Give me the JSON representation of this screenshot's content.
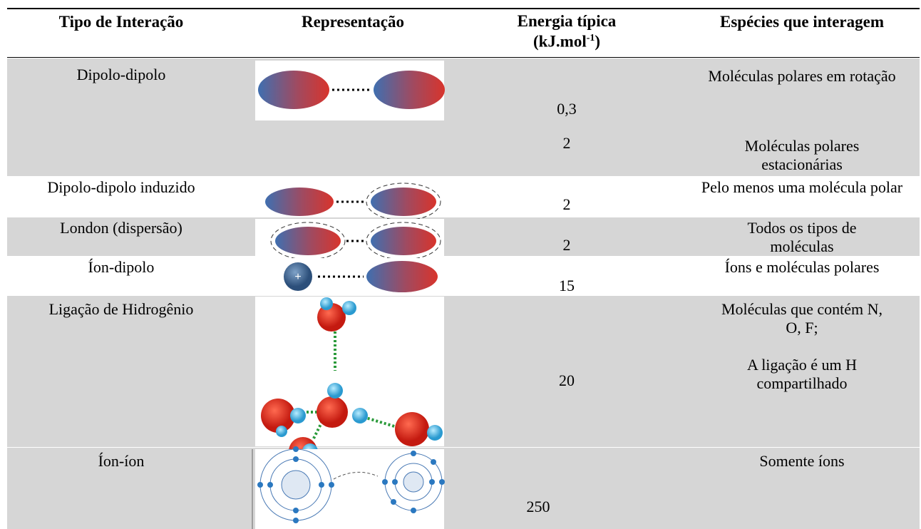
{
  "table": {
    "header": {
      "type": "Tipo de Interação",
      "representation": "Representação",
      "energy": {
        "main": "Energia típica",
        "unit": "(kJ.mol",
        "sup": "-1",
        "close": ")"
      },
      "species": "Espécies que interagem"
    },
    "rows": [
      {
        "type": "Dipolo-dipolo",
        "energy": [
          "0,3",
          "2"
        ],
        "species": [
          "Moléculas polares em rotação",
          "Moléculas polares estacionárias"
        ]
      },
      {
        "type": "Dipolo-dipolo induzido",
        "energy": [
          "2"
        ],
        "species": [
          "Pelo menos uma molécula polar"
        ]
      },
      {
        "type": "London (dispersão)",
        "energy": [
          "2"
        ],
        "species": [
          "Todos os tipos de moléculas"
        ]
      },
      {
        "type": "Íon-dipolo",
        "energy": [
          "15"
        ],
        "species": [
          "Íons e moléculas polares"
        ]
      },
      {
        "type": "Ligação de Hidrogênio",
        "energy": [
          "20"
        ],
        "species": [
          "Moléculas que contém N, O, F;",
          "A ligação é um H compartilhado"
        ]
      },
      {
        "type": "Íon-íon",
        "energy": [
          "250"
        ],
        "species": [
          "Somente íons"
        ]
      }
    ]
  }
}
